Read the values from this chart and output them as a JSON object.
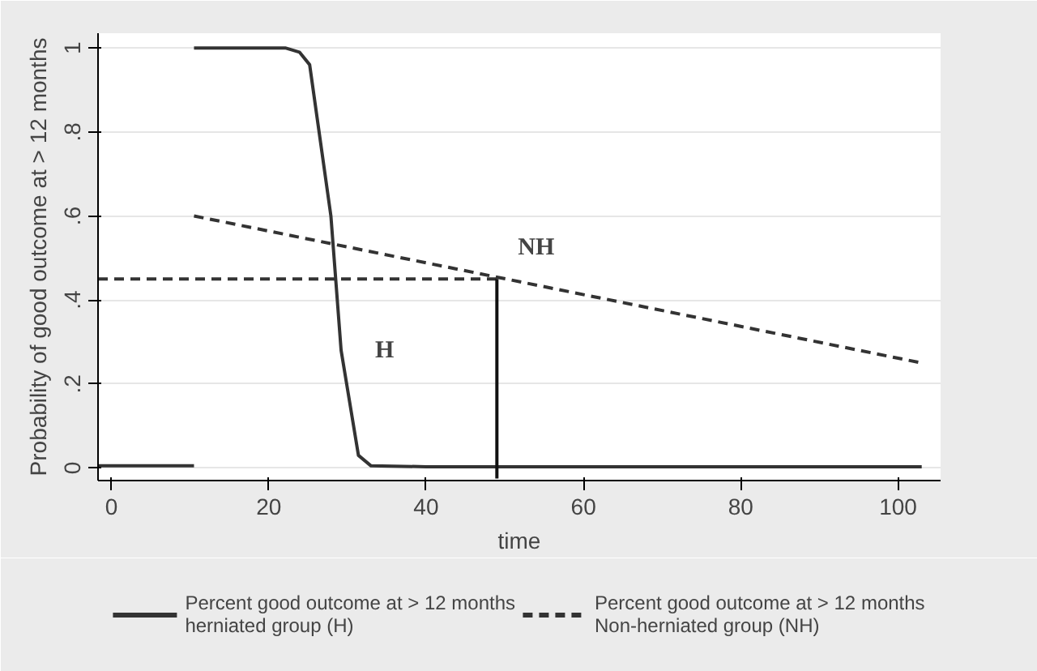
{
  "chart_data": {
    "type": "line",
    "xlabel": "time",
    "ylabel": "Probability of good outcome at > 12 months",
    "xlim": [
      -1.7,
      105.4
    ],
    "ylim": [
      -0.03,
      1.035
    ],
    "xticks": [
      0,
      20,
      40,
      60,
      80,
      100
    ],
    "yticks": [
      {
        "value": 0,
        "label": "0"
      },
      {
        "value": 0.2,
        "label": ".2"
      },
      {
        "value": 0.4,
        "label": ".4"
      },
      {
        "value": 0.6,
        "label": ".6"
      },
      {
        "value": 0.8,
        "label": ".8"
      },
      {
        "value": 1,
        "label": "1"
      }
    ],
    "grid": "y",
    "legend": "bottom",
    "marker": "none",
    "series": [
      {
        "name": "Percent good outcome at > 12 months\nherniated group (H)",
        "color": "#333333",
        "line_style": "solid",
        "x": [
          10.5,
          22.1,
          23.9,
          25.2,
          27.9,
          29.2,
          31.4,
          33,
          40,
          103
        ],
        "values": [
          1,
          1,
          0.99,
          0.96,
          0.6,
          0.28,
          0.03,
          0.005,
          0.003,
          0.003
        ]
      },
      {
        "name": "Percent good outcome at > 12 months\nNon-herniated group (NH)",
        "color": "#333333",
        "line_style": "dashed",
        "x": [
          10.5,
          103
        ],
        "values": [
          0.6,
          0.25
        ]
      },
      {
        "color": "#333333",
        "line_style": "solid",
        "x": [
          -1.7,
          10.5
        ],
        "values": [
          0.005,
          0.005
        ]
      },
      {
        "color": "#333333",
        "line_style": "dashed",
        "x": [
          -1.7,
          49
        ],
        "values": [
          0.45,
          0.45
        ]
      },
      {
        "color": "#111111",
        "line_style": "solid",
        "x": [
          49,
          49
        ],
        "values": [
          -0.025,
          0.45
        ]
      }
    ],
    "annotations": [
      "NH",
      "H"
    ]
  }
}
